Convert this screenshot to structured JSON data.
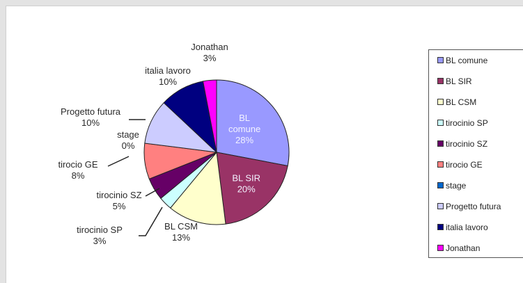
{
  "chart_data": {
    "type": "pie",
    "categories": [
      "BL comune",
      "BL SIR",
      "BL CSM",
      "tirocinio SP",
      "tirocinio SZ",
      "tirocio GE",
      "stage",
      "Progetto futura",
      "italia lavoro",
      "Jonathan"
    ],
    "values": [
      28,
      20,
      13,
      3,
      5,
      8,
      0,
      10,
      10,
      3
    ],
    "display_percents": [
      "28%",
      "20%",
      "13%",
      "3%",
      "5%",
      "8%",
      "0%",
      "10%",
      "10%",
      "3%"
    ],
    "slice_labels": [
      "BL\ncomune",
      "BL SIR",
      "BL CSM",
      "tirocinio SP",
      "tirocinio SZ",
      "tirocio GE",
      "stage",
      "Progetto futura",
      "italia lavoro",
      "Jonathan"
    ],
    "colors": [
      "#9999ff",
      "#993366",
      "#ffffcc",
      "#ccffff",
      "#660066",
      "#ff8080",
      "#0066cc",
      "#ccccff",
      "#000080",
      "#ff00ff"
    ],
    "legend": {
      "position": "right",
      "entries": [
        "BL comune",
        "BL SIR",
        "BL CSM",
        "tirocinio SP",
        "tirocinio SZ",
        "tirocio GE",
        "stage",
        "Progetto futura",
        "italia lavoro",
        "Jonathan"
      ]
    }
  }
}
